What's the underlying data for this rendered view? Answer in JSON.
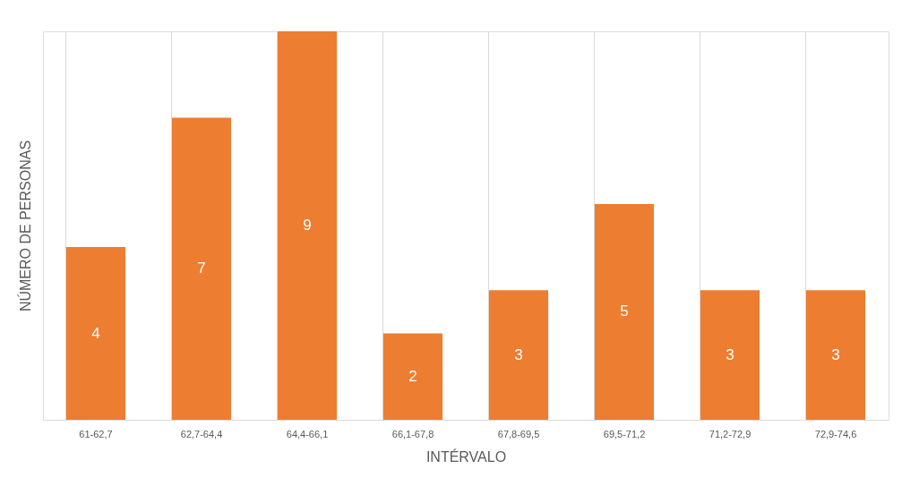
{
  "chart_data": {
    "type": "bar",
    "xlabel": "INTÉRVALO",
    "ylabel": "NÚMERO DE PERSONAS",
    "categories": [
      "61-62,7",
      "62,7-64,4",
      "64,4-66,1",
      "66,1-67,8",
      "67,8-69,5",
      "69,5-71,2",
      "71,2-72,9",
      "72,9-74,6"
    ],
    "values": [
      4,
      7,
      9,
      2,
      3,
      5,
      3,
      3
    ],
    "color": "#ed7d31",
    "tick_labels": "x",
    "data_labels": true,
    "grid": "x"
  }
}
